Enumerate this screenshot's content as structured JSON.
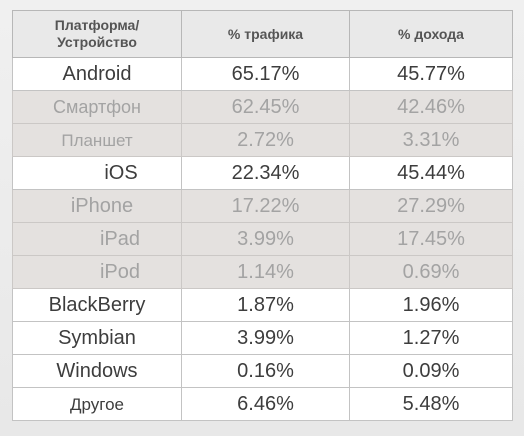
{
  "table": {
    "headers": {
      "platform_line1": "Платформа/",
      "platform_line2": "Устройство",
      "traffic": "% трафика",
      "revenue": "% дохода"
    },
    "rows": [
      {
        "label": "Android",
        "traffic": "65.17%",
        "revenue": "45.77%"
      },
      {
        "label": "Смартфон",
        "traffic": "62.45%",
        "revenue": "42.46%"
      },
      {
        "label": "Планшет",
        "traffic": "2.72%",
        "revenue": "3.31%"
      },
      {
        "label": "iOS",
        "traffic": "22.34%",
        "revenue": "45.44%"
      },
      {
        "label": "iPhone",
        "traffic": "17.22%",
        "revenue": "27.29%"
      },
      {
        "label": "iPad",
        "traffic": "3.99%",
        "revenue": "17.45%"
      },
      {
        "label": "iPod",
        "traffic": "1.14%",
        "revenue": "0.69%"
      },
      {
        "label": "BlackBerry",
        "traffic": "1.87%",
        "revenue": "1.96%"
      },
      {
        "label": "Symbian",
        "traffic": "3.99%",
        "revenue": "1.27%"
      },
      {
        "label": "Windows",
        "traffic": "0.16%",
        "revenue": "0.09%"
      },
      {
        "label": "Другое",
        "traffic": "6.46%",
        "revenue": "5.48%"
      }
    ]
  },
  "colors": {
    "header_bg": "#e9e9e9",
    "main_row_bg": "#ffffff",
    "sub_row_bg": "#e4e1df",
    "main_text": "#3d3d3d",
    "sub_text": "#a3a3a3"
  }
}
